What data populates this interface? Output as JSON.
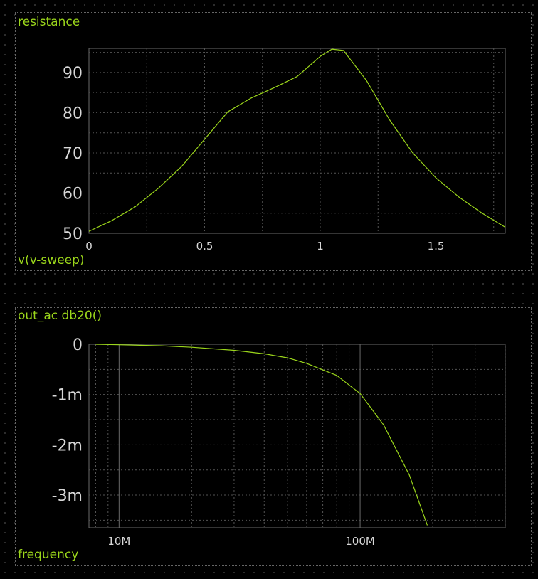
{
  "chart_data": [
    {
      "type": "line",
      "title": "resistance",
      "xlabel": "v(v-sweep)",
      "ylabel": "",
      "xlim": [
        0,
        1.8
      ],
      "ylim": [
        50,
        96
      ],
      "grid": true,
      "x_ticks": [
        "0",
        "0.5",
        "1",
        "1.5"
      ],
      "y_ticks": [
        "90",
        "80",
        "70",
        "60",
        "50"
      ],
      "line_color": "#9bd61b",
      "series": [
        {
          "x": [
            0,
            0.1,
            0.2,
            0.3,
            0.4,
            0.5,
            0.6,
            0.7,
            0.8,
            0.9,
            1.0,
            1.05,
            1.1,
            1.2,
            1.3,
            1.4,
            1.5,
            1.6,
            1.7,
            1.8
          ],
          "y": [
            50.5,
            53.2,
            56.6,
            61.2,
            66.6,
            73.4,
            80.2,
            83.6,
            86.2,
            89.0,
            94.0,
            95.8,
            95.5,
            88.0,
            78.2,
            70.0,
            63.8,
            59.0,
            55.0,
            51.5
          ]
        }
      ]
    },
    {
      "type": "line",
      "title": "out_ac db20()",
      "xlabel": "frequency",
      "ylabel": "",
      "x_scale": "log",
      "xlim": [
        7500000,
        400000000
      ],
      "ylim": [
        -0.00365,
        0
      ],
      "grid": true,
      "x_ticks": [
        "10M",
        "100M"
      ],
      "y_ticks": [
        "0",
        "-1m",
        "-2m",
        "-3m"
      ],
      "line_color": "#9bd61b",
      "series": [
        {
          "x": [
            8000000,
            10000000,
            15000000,
            20000000,
            30000000,
            40000000,
            50000000,
            60000000,
            80000000,
            100000000,
            125000000,
            160000000,
            190000000
          ],
          "y": [
            0,
            -1e-05,
            -3e-05,
            -6e-05,
            -0.00012,
            -0.00019,
            -0.00027,
            -0.00038,
            -0.00062,
            -0.00098,
            -0.0016,
            -0.0026,
            -0.0036
          ]
        }
      ]
    }
  ]
}
